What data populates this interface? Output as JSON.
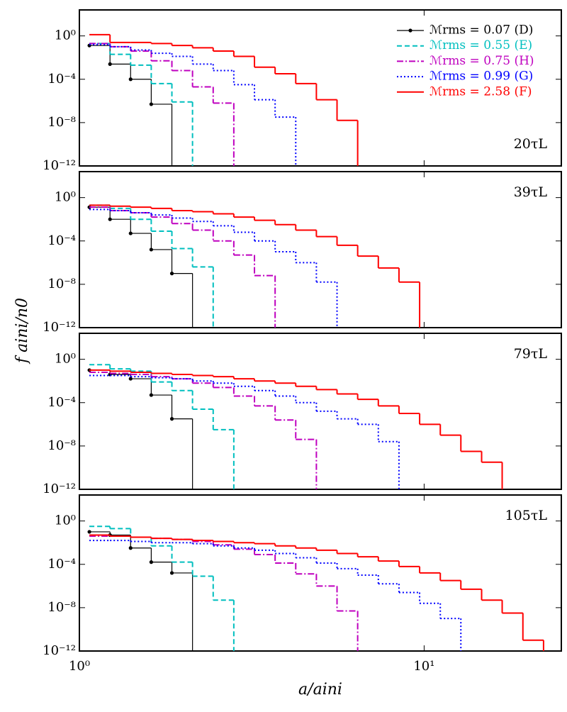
{
  "chart_data": [
    {
      "type": "histogram",
      "xscale": "log",
      "yscale": "log",
      "xlim": [
        1,
        25
      ],
      "ylim": [
        1e-12,
        250
      ],
      "xticks": [
        1,
        10
      ],
      "yticks": [
        {
          "value": 1,
          "label": "10⁰"
        },
        {
          "value": 0.0001,
          "label": "10⁻⁴"
        },
        {
          "value": 1e-08,
          "label": "10⁻⁸"
        },
        {
          "value": 1e-12,
          "label": "10⁻¹²"
        }
      ],
      "ylabel": "f aini/n0",
      "annotation": "20τL",
      "annotation_loc": "lower right",
      "legend_loc": "upper right",
      "bins": [
        1.069,
        1.227,
        1.408,
        1.616,
        1.855,
        2.129,
        2.444,
        2.805,
        3.22,
        3.696,
        4.242,
        4.869,
        5.589,
        6.415,
        7.364,
        8.453,
        9.703,
        11.14,
        12.78,
        14.68,
        16.84,
        19.34,
        22.2
      ],
      "series": [
        {
          "name": "ℳrms = 0.07 (D)",
          "color": "#000000",
          "linestyle": "solid",
          "marker": "o",
          "values": [
            0.13,
            0.0025,
            0.0001,
            5e-07,
            null,
            null,
            null,
            null,
            null,
            null,
            null,
            null,
            null,
            null,
            null,
            null,
            null,
            null,
            null,
            null,
            null,
            null
          ]
        },
        {
          "name": "ℳrms = 0.55 (E)",
          "color": "#00bfbf",
          "linestyle": "dashed",
          "values": [
            0.2,
            0.02,
            0.002,
            4e-05,
            8e-07,
            null,
            null,
            null,
            null,
            null,
            null,
            null,
            null,
            null,
            null,
            null,
            null,
            null,
            null,
            null,
            null,
            null
          ]
        },
        {
          "name": "ℳrms = 0.75 (H)",
          "color": "#bf00bf",
          "linestyle": "dashdot",
          "values": [
            0.2,
            0.1,
            0.04,
            0.005,
            0.00063,
            2e-05,
            6.3e-07,
            null,
            null,
            null,
            null,
            null,
            null,
            null,
            null,
            null,
            null,
            null,
            null,
            null,
            null,
            null
          ]
        },
        {
          "name": "ℳrms = 0.99 (G)",
          "color": "#0000ff",
          "linestyle": "dotted",
          "values": [
            0.16,
            0.1,
            0.05,
            0.025,
            0.013,
            0.0025,
            0.00063,
            3.2e-05,
            1.3e-06,
            3.2e-08,
            null,
            null,
            null,
            null,
            null,
            null,
            null,
            null,
            null,
            null,
            null,
            null
          ]
        },
        {
          "name": "ℳrms = 2.58 (F)",
          "color": "#ff0000",
          "linestyle": "solid",
          "values": [
            1.3,
            0.25,
            0.25,
            0.2,
            0.13,
            0.08,
            0.04,
            0.013,
            0.0013,
            0.00032,
            4e-05,
            1.3e-06,
            1.6e-08,
            null,
            null,
            null,
            null,
            null,
            null,
            null,
            null,
            null
          ]
        }
      ]
    },
    {
      "type": "histogram",
      "xscale": "log",
      "yscale": "log",
      "xlim": [
        1,
        25
      ],
      "ylim": [
        1e-12,
        250
      ],
      "xticks": [
        1,
        10
      ],
      "yticks": [
        {
          "value": 1,
          "label": "10⁰"
        },
        {
          "value": 0.0001,
          "label": "10⁻⁴"
        },
        {
          "value": 1e-08,
          "label": "10⁻⁸"
        },
        {
          "value": 1e-12,
          "label": "10⁻¹²"
        }
      ],
      "annotation": "39τL",
      "annotation_loc": "upper right",
      "bins": [
        1.069,
        1.227,
        1.408,
        1.616,
        1.855,
        2.129,
        2.444,
        2.805,
        3.22,
        3.696,
        4.242,
        4.869,
        5.589,
        6.415,
        7.364,
        8.453,
        9.703,
        11.14,
        12.78,
        14.68,
        16.84,
        19.34,
        22.2
      ],
      "series": [
        {
          "color": "#000000",
          "linestyle": "solid",
          "marker": "o",
          "values": [
            0.13,
            0.01,
            0.0005,
            1.6e-05,
            1e-07,
            null,
            null,
            null,
            null,
            null,
            null,
            null,
            null,
            null,
            null,
            null,
            null,
            null,
            null,
            null,
            null,
            null
          ]
        },
        {
          "color": "#00bfbf",
          "linestyle": "dashed",
          "values": [
            0.2,
            0.1,
            0.01,
            0.0008,
            2e-05,
            4e-07,
            null,
            null,
            null,
            null,
            null,
            null,
            null,
            null,
            null,
            null,
            null,
            null,
            null,
            null,
            null,
            null
          ]
        },
        {
          "color": "#bf00bf",
          "linestyle": "dashdot",
          "values": [
            0.13,
            0.063,
            0.04,
            0.016,
            0.004,
            0.001,
            0.0001,
            5e-06,
            6.3e-08,
            null,
            null,
            null,
            null,
            null,
            null,
            null,
            null,
            null,
            null,
            null,
            null,
            null
          ]
        },
        {
          "color": "#0000ff",
          "linestyle": "dotted",
          "values": [
            0.08,
            0.063,
            0.04,
            0.025,
            0.013,
            0.0063,
            0.0025,
            0.00063,
            0.0001,
            1e-05,
            1e-06,
            1.6e-08,
            null,
            null,
            null,
            null,
            null,
            null,
            null,
            null,
            null,
            null
          ]
        },
        {
          "color": "#ff0000",
          "linestyle": "solid",
          "values": [
            0.2,
            0.16,
            0.13,
            0.1,
            0.063,
            0.05,
            0.032,
            0.016,
            0.008,
            0.0032,
            0.001,
            0.00025,
            4e-05,
            4e-06,
            3.2e-07,
            1.6e-08,
            null,
            null,
            null,
            null,
            null,
            null
          ]
        }
      ]
    },
    {
      "type": "histogram",
      "xscale": "log",
      "yscale": "log",
      "xlim": [
        1,
        25
      ],
      "ylim": [
        1e-12,
        250
      ],
      "xticks": [
        1,
        10
      ],
      "yticks": [
        {
          "value": 1,
          "label": "10⁰"
        },
        {
          "value": 0.0001,
          "label": "10⁻⁴"
        },
        {
          "value": 1e-08,
          "label": "10⁻⁸"
        },
        {
          "value": 1e-12,
          "label": "10⁻¹²"
        }
      ],
      "annotation": "79τL",
      "annotation_loc": "upper right",
      "bins": [
        1.069,
        1.227,
        1.408,
        1.616,
        1.855,
        2.129,
        2.444,
        2.805,
        3.22,
        3.696,
        4.242,
        4.869,
        5.589,
        6.415,
        7.364,
        8.453,
        9.703,
        11.14,
        12.78,
        14.68,
        16.84,
        19.34,
        22.2
      ],
      "series": [
        {
          "color": "#000000",
          "linestyle": "solid",
          "marker": "o",
          "values": [
            0.1,
            0.04,
            0.016,
            0.0005,
            3.2e-06,
            null,
            null,
            null,
            null,
            null,
            null,
            null,
            null,
            null,
            null,
            null,
            null,
            null,
            null,
            null,
            null,
            null
          ]
        },
        {
          "color": "#00bfbf",
          "linestyle": "dashed",
          "values": [
            0.32,
            0.13,
            0.08,
            0.008,
            0.0013,
            2.5e-05,
            3.2e-07,
            null,
            null,
            null,
            null,
            null,
            null,
            null,
            null,
            null,
            null,
            null,
            null,
            null,
            null,
            null
          ]
        },
        {
          "color": "#bf00bf",
          "linestyle": "dashdot",
          "values": [
            0.063,
            0.05,
            0.04,
            0.025,
            0.016,
            0.0063,
            0.0025,
            0.0004,
            5e-05,
            2.5e-06,
            4e-08,
            null,
            null,
            null,
            null,
            null,
            null,
            null,
            null,
            null,
            null,
            null
          ]
        },
        {
          "color": "#0000ff",
          "linestyle": "dotted",
          "values": [
            0.032,
            0.032,
            0.025,
            0.02,
            0.016,
            0.01,
            0.0063,
            0.0032,
            0.0013,
            0.0004,
            0.0001,
            1.6e-05,
            3.2e-06,
            1e-06,
            2.5e-08,
            null,
            null,
            null,
            null,
            null,
            null,
            null
          ]
        },
        {
          "color": "#ff0000",
          "linestyle": "solid",
          "values": [
            0.1,
            0.08,
            0.063,
            0.05,
            0.04,
            0.032,
            0.025,
            0.016,
            0.01,
            0.0063,
            0.0032,
            0.0016,
            0.00063,
            0.0002,
            5e-05,
            1e-05,
            1e-06,
            1e-07,
            3.2e-09,
            3.2e-10,
            null,
            null
          ]
        }
      ]
    },
    {
      "type": "histogram",
      "xscale": "log",
      "yscale": "log",
      "xlim": [
        1,
        25
      ],
      "ylim": [
        1e-12,
        250
      ],
      "xticks": [
        {
          "value": 1,
          "label": "10⁰"
        },
        {
          "value": 10,
          "label": "10¹"
        }
      ],
      "yticks": [
        {
          "value": 1,
          "label": "10⁰"
        },
        {
          "value": 0.0001,
          "label": "10⁻⁴"
        },
        {
          "value": 1e-08,
          "label": "10⁻⁸"
        },
        {
          "value": 1e-12,
          "label": "10⁻¹²"
        }
      ],
      "xlabel": "a/aini",
      "annotation": "105τL",
      "annotation_loc": "upper right",
      "bins": [
        1.069,
        1.227,
        1.408,
        1.616,
        1.855,
        2.129,
        2.444,
        2.805,
        3.22,
        3.696,
        4.242,
        4.869,
        5.589,
        6.415,
        7.364,
        8.453,
        9.703,
        11.14,
        12.78,
        14.68,
        16.84,
        19.34,
        22.2
      ],
      "series": [
        {
          "color": "#000000",
          "linestyle": "solid",
          "marker": "o",
          "values": [
            0.1,
            0.05,
            0.0032,
            0.00016,
            1.6e-05,
            null,
            null,
            null,
            null,
            null,
            null,
            null,
            null,
            null,
            null,
            null,
            null,
            null,
            null,
            null,
            null,
            null
          ]
        },
        {
          "color": "#00bfbf",
          "linestyle": "dashed",
          "values": [
            0.32,
            0.2,
            0.032,
            0.005,
            0.00016,
            8e-06,
            5e-08,
            null,
            null,
            null,
            null,
            null,
            null,
            null,
            null,
            null,
            null,
            null,
            null,
            null,
            null,
            null
          ]
        },
        {
          "color": "#bf00bf",
          "linestyle": "dashdot",
          "values": [
            0.04,
            0.04,
            0.032,
            0.025,
            0.02,
            0.013,
            0.0063,
            0.0025,
            0.0008,
            0.00013,
            1.3e-05,
            1e-06,
            5e-09,
            null,
            null,
            null,
            null,
            null,
            null,
            null,
            null,
            null
          ]
        },
        {
          "color": "#0000ff",
          "linestyle": "dotted",
          "values": [
            0.016,
            0.016,
            0.013,
            0.01,
            0.01,
            0.008,
            0.005,
            0.0032,
            0.002,
            0.001,
            0.0004,
            0.00013,
            4e-05,
            1e-05,
            1.6e-06,
            2.5e-07,
            2.5e-08,
            1e-09,
            null,
            null,
            null,
            null
          ]
        },
        {
          "color": "#ff0000",
          "linestyle": "solid",
          "values": [
            0.05,
            0.04,
            0.032,
            0.025,
            0.02,
            0.016,
            0.013,
            0.01,
            0.008,
            0.005,
            0.0032,
            0.002,
            0.001,
            0.0005,
            0.0002,
            6.3e-05,
            1.6e-05,
            3.2e-06,
            5e-07,
            5e-08,
            3.2e-09,
            1e-11
          ]
        }
      ]
    }
  ]
}
